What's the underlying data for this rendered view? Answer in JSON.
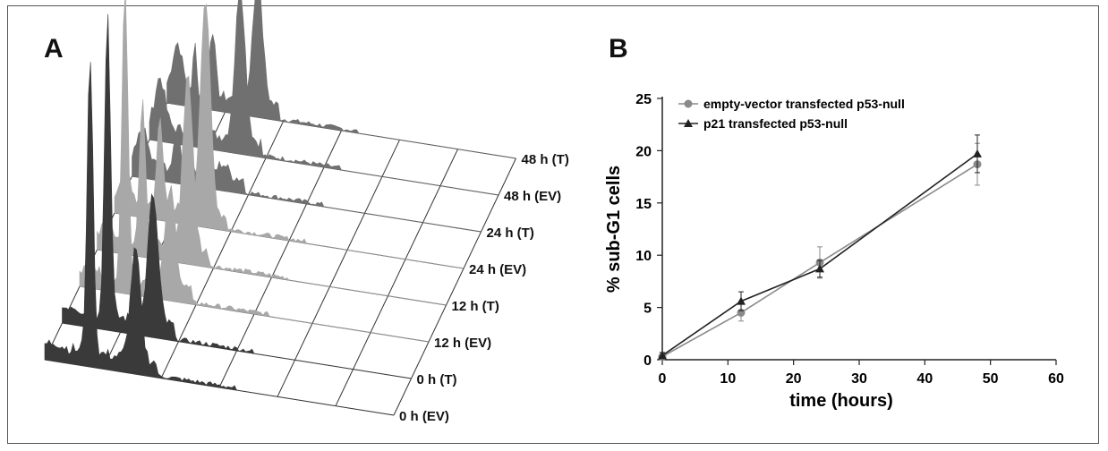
{
  "panel_a": {
    "letter": "A",
    "traces": [
      {
        "label": "0 h (EV)",
        "g1_height": 0.98,
        "g2_height": 0.36,
        "subg1": 0.04
      },
      {
        "label": "0 h (T)",
        "g1_height": 1.0,
        "g2_height": 0.42,
        "subg1": 0.04
      },
      {
        "label": "12 h (EV)",
        "g1_height": 0.98,
        "g2_height": 0.32,
        "subg1": 0.12
      },
      {
        "label": "12 h (T)",
        "g1_height": 0.48,
        "g2_height": 0.58,
        "subg1": 0.16
      },
      {
        "label": "24 h (EV)",
        "g1_height": 0.28,
        "g2_height": 0.7,
        "subg1": 0.3
      },
      {
        "label": "24 h (T)",
        "g1_height": 0.12,
        "g2_height": 0.04,
        "subg1": 0.32
      },
      {
        "label": "48 h (EV)",
        "g1_height": 0.28,
        "g2_height": 0.5,
        "subg1": 0.46
      },
      {
        "label": "48 h (T)",
        "g1_height": 0.22,
        "g2_height": 0.4,
        "subg1": 0.44
      }
    ],
    "colors": {
      "dark": "#3a3a3a",
      "mid": "#707070",
      "light": "#a8a8a8"
    }
  },
  "panel_b": {
    "letter": "B",
    "chart_data": {
      "type": "line",
      "xlabel": "time (hours)",
      "ylabel": "% sub-G1 cells",
      "xlim": [
        0,
        60
      ],
      "ylim": [
        0,
        25
      ],
      "xticks": [
        0,
        10,
        20,
        30,
        40,
        50,
        60
      ],
      "yticks": [
        0,
        5,
        10,
        15,
        20,
        25
      ],
      "legend_position": "top-left",
      "series": [
        {
          "name": "empty-vector transfected p53-null",
          "marker": "circle",
          "color": "#8a8a8a",
          "x": [
            0,
            12,
            24,
            48
          ],
          "y": [
            0.3,
            4.5,
            9.3,
            18.7
          ],
          "err": [
            0.3,
            0.8,
            1.5,
            2.0
          ]
        },
        {
          "name": "p21 transfected p53-null",
          "marker": "triangle",
          "color": "#222222",
          "x": [
            0,
            12,
            24,
            48
          ],
          "y": [
            0.4,
            5.6,
            8.7,
            19.7
          ],
          "err": [
            0.3,
            0.9,
            0.8,
            1.8
          ]
        }
      ]
    }
  }
}
